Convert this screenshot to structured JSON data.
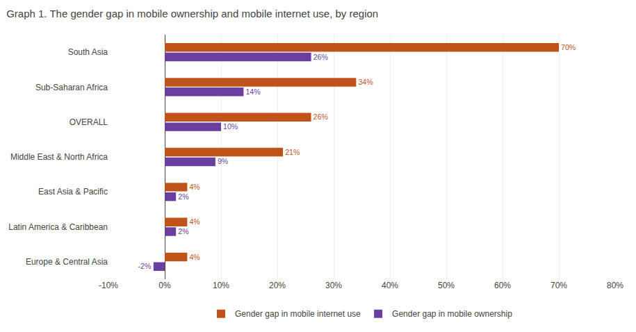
{
  "chart_data": {
    "type": "bar",
    "orientation": "horizontal",
    "title": "Graph 1. The gender gap in mobile ownership and mobile internet use, by region",
    "categories": [
      "Europe & Central Asia",
      "Latin America & Caribbean",
      "East Asia & Pacific",
      "Middle East & North Africa",
      "OVERALL",
      "Sub-Saharan Africa",
      "South Asia"
    ],
    "series": [
      {
        "name": "Gender gap in mobile internet use",
        "color": "#C0531A",
        "values": [
          4,
          4,
          4,
          21,
          26,
          34,
          70
        ],
        "value_labels": [
          "4%",
          "4%",
          "4%",
          "21%",
          "26%",
          "34%",
          "70%"
        ]
      },
      {
        "name": "Gender gap in mobile ownership",
        "color": "#6B3FA0",
        "values": [
          -2,
          2,
          2,
          9,
          10,
          14,
          26
        ],
        "value_labels": [
          "-2%",
          "2%",
          "2%",
          "9%",
          "10%",
          "14%",
          "26%"
        ]
      }
    ],
    "xlim": [
      -10,
      80
    ],
    "xticks": [
      {
        "value": -10,
        "label": "-10%"
      },
      {
        "value": 0,
        "label": "0%"
      },
      {
        "value": 10,
        "label": "10%"
      },
      {
        "value": 20,
        "label": "20%"
      },
      {
        "value": 30,
        "label": "30%"
      },
      {
        "value": 40,
        "label": "40%"
      },
      {
        "value": 50,
        "label": "50%"
      },
      {
        "value": 60,
        "label": "60%"
      },
      {
        "value": 70,
        "label": "70%"
      },
      {
        "value": 80,
        "label": "80%"
      }
    ],
    "grid": true,
    "legend": "bottom",
    "data_labels": true
  }
}
